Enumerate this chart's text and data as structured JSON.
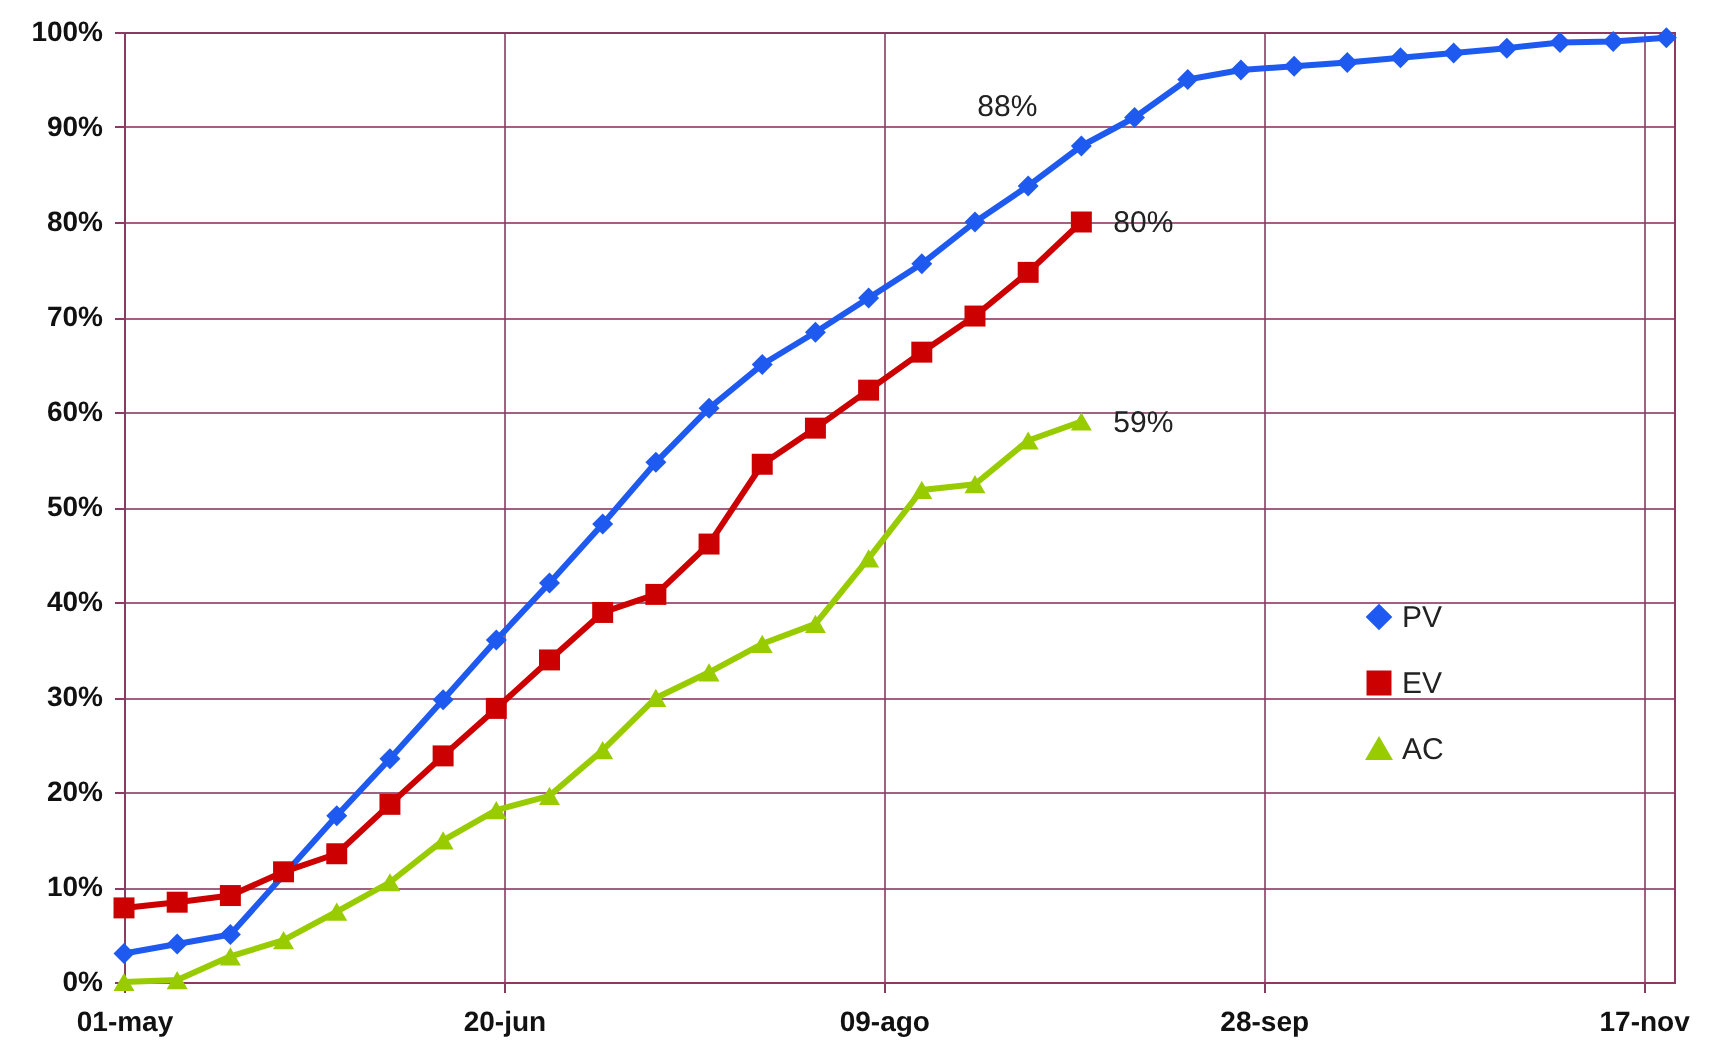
{
  "chart_data": {
    "type": "line",
    "x": [
      "--05-01",
      "--05-08",
      "--05-15",
      "--05-22",
      "--05-29",
      "--06-05",
      "--06-12",
      "--06-19",
      "--06-26",
      "--07-03",
      "--07-10",
      "--07-17",
      "--07-24",
      "--07-31",
      "--08-07",
      "--08-14",
      "--08-21",
      "--08-28",
      "--09-04",
      "--09-11",
      "--09-18",
      "--09-25",
      "--10-02",
      "--10-09",
      "--10-16",
      "--10-23",
      "--10-30",
      "--11-06",
      "--11-13",
      "--11-20"
    ],
    "series": [
      {
        "name": "PV",
        "color": "#1f5af0",
        "marker": "diamond",
        "values": [
          3,
          4,
          5,
          null,
          17.5,
          23.5,
          29.7,
          36,
          42,
          48.2,
          54.7,
          60.4,
          65,
          68.4,
          72,
          75.6,
          80,
          83.8,
          88,
          91,
          95,
          96,
          96.4,
          96.8,
          97.3,
          97.8,
          98.3,
          98.9,
          99,
          99.4
        ]
      },
      {
        "name": "EV",
        "color": "#cc0000",
        "marker": "square",
        "values": [
          7.8,
          8.4,
          9.1,
          11.6,
          13.5,
          18.7,
          23.8,
          28.8,
          33.9,
          38.9,
          40.8,
          46.1,
          54.5,
          58.3,
          62.3,
          66.3,
          70.1,
          74.7,
          80,
          null,
          null,
          null,
          null,
          null,
          null,
          null,
          null,
          null,
          null,
          null
        ]
      },
      {
        "name": "AC",
        "color": "#99cc00",
        "marker": "triangle",
        "values": [
          0,
          0.2,
          2.7,
          4.4,
          7.4,
          10.5,
          14.9,
          18.1,
          19.6,
          24.4,
          29.9,
          32.6,
          35.6,
          37.7,
          44.6,
          51.8,
          52.4,
          57,
          59,
          null,
          null,
          null,
          null,
          null,
          null,
          null,
          null,
          null,
          null,
          null
        ]
      }
    ],
    "xlim": [
      "--05-01",
      "--11-21"
    ],
    "xticks": [
      {
        "value": "--05-01",
        "label": "01-may"
      },
      {
        "value": "--06-20",
        "label": "20-jun"
      },
      {
        "value": "--08-09",
        "label": "09-ago"
      },
      {
        "value": "--09-28",
        "label": "28-sep"
      },
      {
        "value": "--11-17",
        "label": "17-nov"
      }
    ],
    "ylim": [
      0,
      100
    ],
    "yticks": [
      {
        "value": 0,
        "label": "0%"
      },
      {
        "value": 10,
        "label": "10%"
      },
      {
        "value": 20,
        "label": "20%"
      },
      {
        "value": 30,
        "label": "30%"
      },
      {
        "value": 40,
        "label": "40%"
      },
      {
        "value": 50,
        "label": "50%"
      },
      {
        "value": 60,
        "label": "60%"
      },
      {
        "value": 70,
        "label": "70%"
      },
      {
        "value": 80,
        "label": "80%"
      },
      {
        "value": 90,
        "label": "90%"
      },
      {
        "value": 100,
        "label": "100%"
      }
    ],
    "annotations": [
      {
        "text": "88%",
        "x": "--09-04",
        "y": 88
      },
      {
        "text": "80%",
        "x": "--09-04",
        "y": 80
      },
      {
        "text": "59%",
        "x": "--09-04",
        "y": 59
      }
    ],
    "grid": true,
    "legend": "right"
  }
}
